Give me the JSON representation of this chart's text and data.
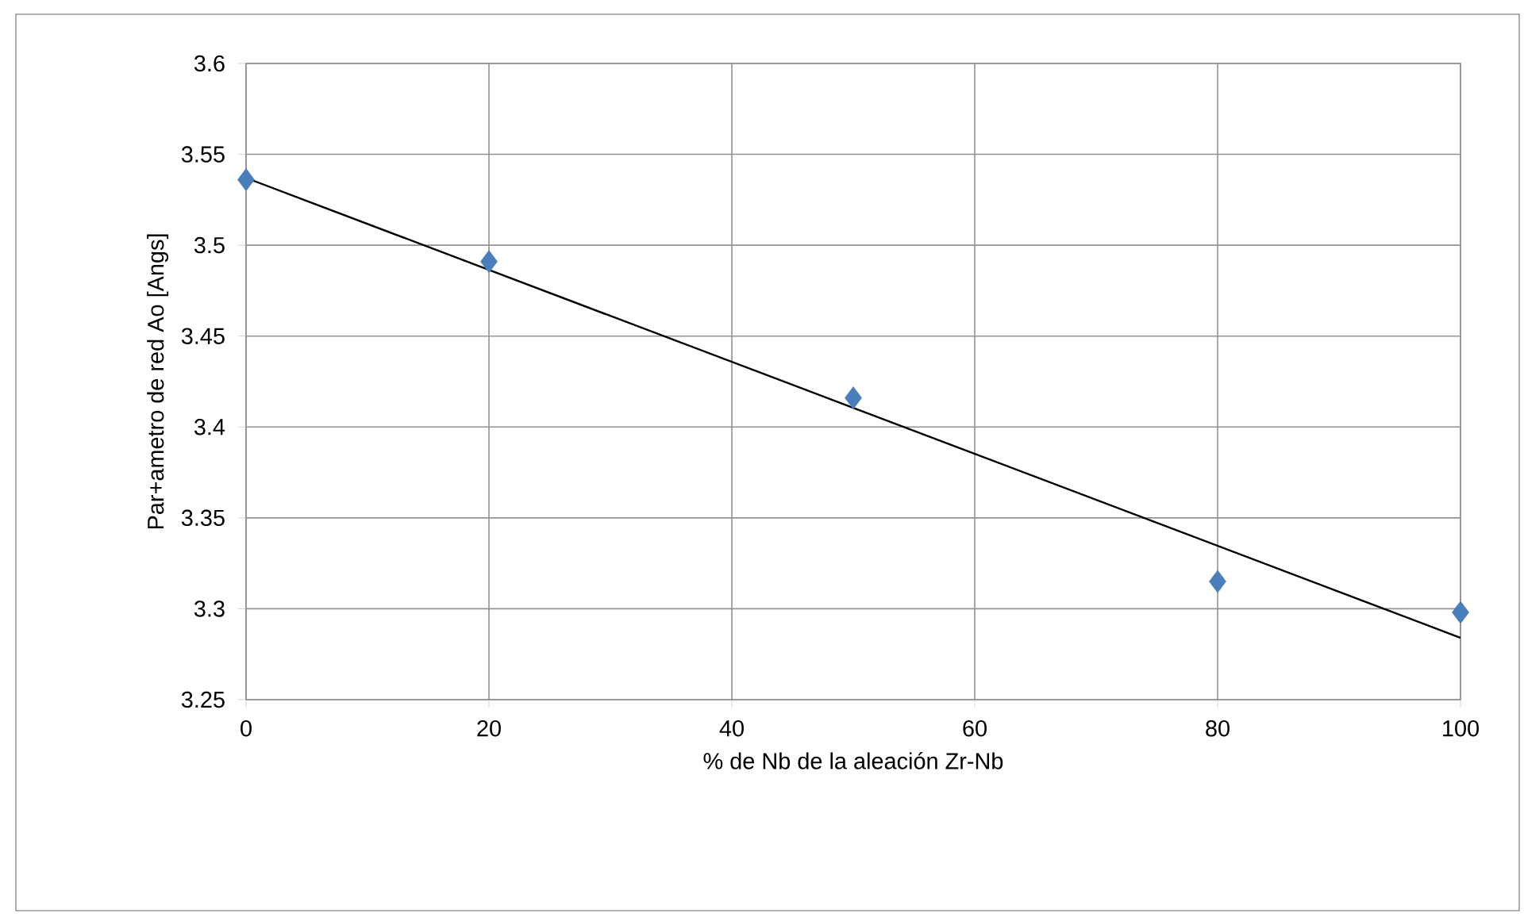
{
  "chart_data": {
    "type": "scatter",
    "xlabel": "% de Nb de la aleación Zr-Nb",
    "ylabel": "Par+ametro de red Ao [Angs]",
    "series": [
      {
        "color": "#4a7ebb",
        "marker": "diamond",
        "x": [
          0,
          20,
          50,
          80,
          100
        ],
        "values": [
          3.536,
          3.491,
          3.416,
          3.315,
          3.298
        ]
      },
      {
        "type": "line",
        "color": "#000000",
        "marker": "none",
        "x": [
          0,
          100
        ],
        "values": [
          3.537,
          3.284
        ]
      }
    ],
    "xlim": [
      0,
      100
    ],
    "xticks": [
      0,
      20,
      40,
      60,
      80,
      100
    ],
    "ylim": [
      3.25,
      3.6
    ],
    "yticks": [
      3.25,
      3.3,
      3.35,
      3.4,
      3.45,
      3.5,
      3.55,
      3.6
    ],
    "grid": true
  }
}
